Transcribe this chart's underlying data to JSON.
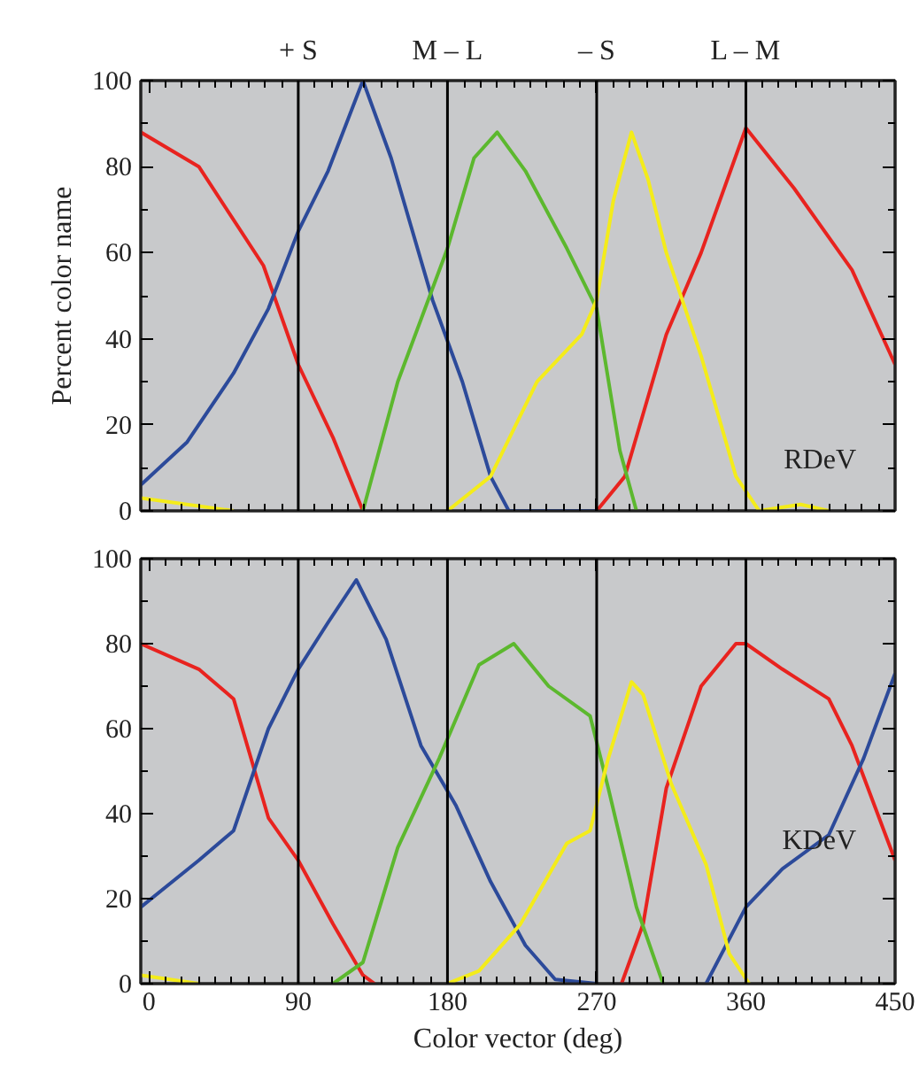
{
  "chart_data": [
    {
      "type": "line",
      "ylabel": "Percent color name",
      "xlim": [
        -5,
        450
      ],
      "ylim": [
        0,
        100
      ],
      "xticks": [
        0,
        90,
        180,
        270,
        360,
        450
      ],
      "yticks": [
        0,
        20,
        40,
        60,
        80,
        100
      ],
      "tick_labels": "y",
      "grid": false,
      "annotations": [
        "RDeV"
      ],
      "ref_lines": [
        {
          "axis": "x",
          "value": 90,
          "label": "+ S",
          "color": "#000000"
        },
        {
          "axis": "x",
          "value": 180,
          "label": "M – L",
          "color": "#000000"
        },
        {
          "axis": "x",
          "value": 270,
          "label": "– S",
          "color": "#000000"
        },
        {
          "axis": "x",
          "value": 360,
          "label": "L – M",
          "color": "#000000"
        }
      ],
      "series": [
        {
          "color": "#e8231f",
          "x": [
            -5,
            30,
            69,
            90,
            111,
            129,
            null,
            270,
            287,
            312,
            333,
            360,
            389,
            424,
            450
          ],
          "values": [
            88,
            80,
            57,
            34,
            17,
            0,
            null,
            0,
            8,
            41,
            60,
            89,
            75,
            56,
            34
          ]
        },
        {
          "color": "#2c4a9a",
          "x": [
            -5,
            23,
            51,
            72,
            90,
            108,
            129,
            146,
            171,
            189,
            206,
            217,
            270
          ],
          "values": [
            6,
            16,
            32,
            47,
            65,
            79,
            100,
            82,
            49,
            30,
            8,
            0,
            0
          ]
        },
        {
          "color": "#5cb82e",
          "x": [
            129,
            150,
            180,
            196,
            210,
            227,
            252,
            270,
            284,
            294
          ],
          "values": [
            0,
            30,
            61,
            82,
            88,
            79,
            61,
            47,
            14,
            0
          ]
        },
        {
          "color": "#f4ec1a",
          "x": [
            -5,
            51,
            null,
            180,
            206,
            234,
            261,
            270,
            280,
            291,
            301,
            312,
            333,
            354,
            368,
            393,
            410
          ],
          "values": [
            3,
            0,
            null,
            0,
            8,
            30,
            41,
            49,
            72,
            88,
            77,
            60,
            36,
            8,
            0,
            1.5,
            0
          ]
        }
      ]
    },
    {
      "type": "line",
      "xlabel": "Color vector (deg)",
      "xlim": [
        -5,
        450
      ],
      "ylim": [
        0,
        100
      ],
      "xticks": [
        0,
        90,
        180,
        270,
        360,
        450
      ],
      "yticks": [
        0,
        20,
        40,
        60,
        80,
        100
      ],
      "grid": false,
      "annotations": [
        "KDeV"
      ],
      "ref_lines": [
        {
          "axis": "x",
          "value": 90,
          "color": "#000000"
        },
        {
          "axis": "x",
          "value": 180,
          "color": "#000000"
        },
        {
          "axis": "x",
          "value": 270,
          "color": "#000000"
        },
        {
          "axis": "x",
          "value": 360,
          "color": "#000000"
        }
      ],
      "series": [
        {
          "color": "#e8231f",
          "x": [
            -5,
            30,
            51,
            72,
            90,
            111,
            129,
            136,
            null,
            285,
            298,
            312,
            333,
            354,
            360,
            382,
            410,
            424,
            450
          ],
          "values": [
            80,
            74,
            67,
            39,
            29,
            14,
            2,
            0,
            null,
            0,
            14,
            46,
            70,
            80,
            80,
            74,
            67,
            56,
            29
          ]
        },
        {
          "color": "#2c4a9a",
          "x": [
            -5,
            30,
            51,
            72,
            90,
            108,
            125,
            143,
            164,
            185,
            206,
            227,
            245,
            270,
            null,
            336,
            360,
            382,
            410,
            431,
            450
          ],
          "values": [
            18,
            29,
            36,
            60,
            74,
            85,
            95,
            81,
            56,
            42,
            24,
            9,
            1,
            0,
            null,
            0,
            18,
            27,
            35,
            53,
            73
          ]
        },
        {
          "color": "#5cb82e",
          "x": [
            111,
            129,
            150,
            175,
            199,
            220,
            241,
            266,
            277,
            294,
            310
          ],
          "values": [
            0,
            5,
            32,
            53,
            75,
            80,
            70,
            63,
            46,
            18,
            0
          ]
        },
        {
          "color": "#f4ec1a",
          "x": [
            -5,
            30,
            null,
            180,
            199,
            224,
            252,
            266,
            277,
            291,
            298,
            315,
            336,
            350,
            362
          ],
          "values": [
            2,
            0,
            null,
            0,
            3,
            14,
            33,
            36,
            53,
            71,
            68,
            47,
            28,
            7,
            0
          ]
        }
      ]
    }
  ]
}
